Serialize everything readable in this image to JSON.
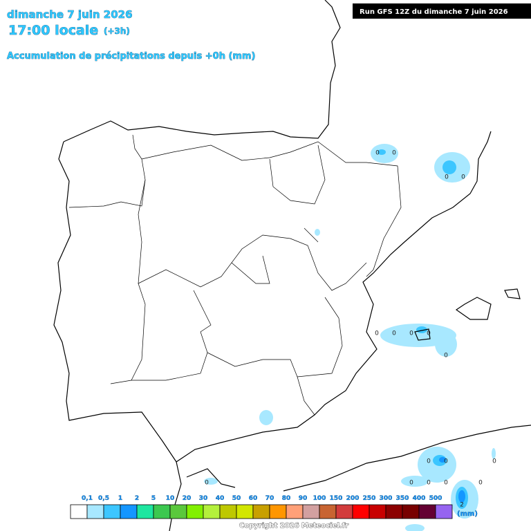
{
  "header": {
    "date": "dimanche 7 juin 2026",
    "time": "17:00 locale",
    "offset": "(+3h)",
    "subtitle": "Accumulation de précipitations depuis +0h (mm)"
  },
  "run": "Run GFS 12Z du dimanche 7 juin 2026",
  "map_values": [
    0,
    0,
    0,
    0,
    0,
    0,
    0,
    0,
    0,
    0,
    0,
    0,
    0,
    0,
    0,
    0,
    0,
    2
  ],
  "legend": {
    "labels": [
      "0,1",
      "0,5",
      "1",
      "2",
      "5",
      "10",
      "20",
      "30",
      "40",
      "50",
      "60",
      "70",
      "80",
      "90",
      "100",
      "150",
      "200",
      "250",
      "300",
      "350",
      "400",
      "500"
    ],
    "colors": [
      "#ffffff",
      "#a8e8ff",
      "#3cc6ff",
      "#1496ff",
      "#1ee6a0",
      "#3cc850",
      "#5ac83c",
      "#82f000",
      "#b4f03c",
      "#bec800",
      "#d2e600",
      "#c8a000",
      "#ff9600",
      "#ffa078",
      "#d2a0a0",
      "#c86432",
      "#d23c3c",
      "#ff0000",
      "#c80000",
      "#8c0000",
      "#780000",
      "#640032",
      "#9664f0"
    ],
    "unit": "(mm)"
  },
  "copyright": "Copyright 2026 Meteociel.fr"
}
